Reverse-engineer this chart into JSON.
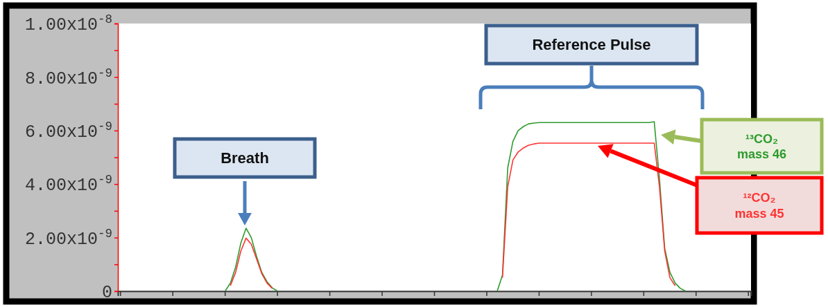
{
  "chart_data": {
    "type": "line",
    "categories": [
      null,
      null,
      null,
      null,
      null,
      null,
      null,
      null,
      null,
      null,
      null,
      null,
      null,
      null,
      null,
      null,
      null,
      null,
      null,
      null,
      null,
      null,
      null,
      null,
      null,
      null,
      null,
      null,
      null,
      null,
      null,
      null,
      null,
      null,
      null,
      null,
      null,
      null,
      null,
      null,
      null,
      null,
      null,
      null,
      null,
      null,
      null,
      null,
      null,
      null,
      null,
      null,
      null,
      null,
      null,
      null,
      null,
      null,
      null,
      null,
      null,
      null,
      null,
      null,
      null,
      null,
      null,
      null,
      null,
      null,
      null,
      null,
      null,
      null,
      null,
      null,
      null,
      null,
      null,
      null,
      null,
      null,
      null,
      null,
      null,
      null,
      null,
      null,
      null,
      null,
      null,
      null,
      null,
      null,
      null,
      null,
      null,
      null,
      null,
      null,
      null,
      null,
      null,
      null,
      null,
      null,
      null,
      null,
      null,
      null,
      null,
      null,
      null,
      null,
      null,
      null,
      null,
      null,
      null,
      null,
      null
    ],
    "series": [
      {
        "name": "¹³CO₂ mass 46",
        "color": "#2e9a2e",
        "values": [
          null,
          null,
          null,
          null,
          null,
          null,
          null,
          null,
          null,
          null,
          null,
          null,
          null,
          null,
          null,
          null,
          null,
          null,
          null,
          null,
          0,
          3e-10,
          9e-10,
          1.8e-09,
          2.35e-09,
          2e-09,
          1.3e-09,
          7e-10,
          3.5e-10,
          1.2e-10,
          0,
          null,
          null,
          null,
          null,
          null,
          null,
          null,
          null,
          null,
          null,
          null,
          null,
          null,
          null,
          null,
          null,
          null,
          null,
          null,
          null,
          null,
          null,
          null,
          null,
          null,
          null,
          null,
          null,
          null,
          null,
          null,
          null,
          null,
          null,
          null,
          null,
          null,
          null,
          null,
          null,
          null,
          0,
          6e-10,
          4.6e-09,
          5.6e-09,
          6e-09,
          6.15e-09,
          6.25e-09,
          6.28e-09,
          6.3e-09,
          6.3e-09,
          6.3e-09,
          6.3e-09,
          6.3e-09,
          6.3e-09,
          6.3e-09,
          6.3e-09,
          6.3e-09,
          6.3e-09,
          6.3e-09,
          6.3e-09,
          6.3e-09,
          6.3e-09,
          6.3e-09,
          6.3e-09,
          6.3e-09,
          6.3e-09,
          6.3e-09,
          6.3e-09,
          6.3e-09,
          6.3e-09,
          6.33e-09,
          4.2e-09,
          1.6e-09,
          7e-10,
          3e-10,
          1e-10,
          0,
          null,
          null,
          null,
          null,
          null,
          null,
          null,
          null,
          null,
          null,
          null,
          null
        ]
      },
      {
        "name": "¹²CO₂ mass 45",
        "color": "#ff3333",
        "values": [
          null,
          null,
          null,
          null,
          null,
          null,
          null,
          null,
          null,
          null,
          null,
          null,
          null,
          null,
          null,
          null,
          null,
          null,
          null,
          null,
          null,
          2e-10,
          7e-10,
          1.5e-09,
          1.98e-09,
          1.75e-09,
          1.2e-09,
          6.5e-10,
          3e-10,
          1e-10,
          null,
          null,
          null,
          null,
          null,
          null,
          null,
          null,
          null,
          null,
          null,
          null,
          null,
          null,
          null,
          null,
          null,
          null,
          null,
          null,
          null,
          null,
          null,
          null,
          null,
          null,
          null,
          null,
          null,
          null,
          null,
          null,
          null,
          null,
          null,
          null,
          null,
          null,
          null,
          null,
          null,
          null,
          null,
          5e-10,
          3.9e-09,
          4.9e-09,
          5.2e-09,
          5.35e-09,
          5.45e-09,
          5.5e-09,
          5.53e-09,
          5.53e-09,
          5.53e-09,
          5.53e-09,
          5.53e-09,
          5.53e-09,
          5.53e-09,
          5.53e-09,
          5.53e-09,
          5.53e-09,
          5.53e-09,
          5.53e-09,
          5.53e-09,
          5.53e-09,
          5.53e-09,
          5.53e-09,
          5.53e-09,
          5.53e-09,
          5.53e-09,
          5.53e-09,
          5.53e-09,
          5.53e-09,
          5.53e-09,
          3.9e-09,
          1.5e-09,
          5e-10,
          2e-10,
          null,
          null,
          null,
          null,
          null,
          null,
          null,
          null,
          null,
          null,
          null,
          null,
          null,
          null
        ]
      }
    ],
    "ylim": [
      0,
      1e-08
    ],
    "yticks": [
      0,
      {
        "value": 1e-09,
        "label": null
      },
      {
        "value": 2e-09,
        "label": "2.00x10$^{-9}$"
      },
      {
        "value": 3e-09,
        "label": null
      },
      {
        "value": 4e-09,
        "label": "4.00x10$^{-9}$"
      },
      {
        "value": 5e-09,
        "label": null
      },
      {
        "value": 6e-09,
        "label": "6.00x10$^{-9}$"
      },
      {
        "value": 7e-09,
        "label": null
      },
      {
        "value": 8e-09,
        "label": "8.00x10$^{-9}$"
      },
      {
        "value": 9e-09,
        "label": null
      },
      {
        "value": 1e-08,
        "label": "1.00x10$^{-8}$"
      }
    ],
    "annotations": [
      "Breath",
      "Reference Pulse"
    ],
    "legend": false,
    "grid": false
  }
}
